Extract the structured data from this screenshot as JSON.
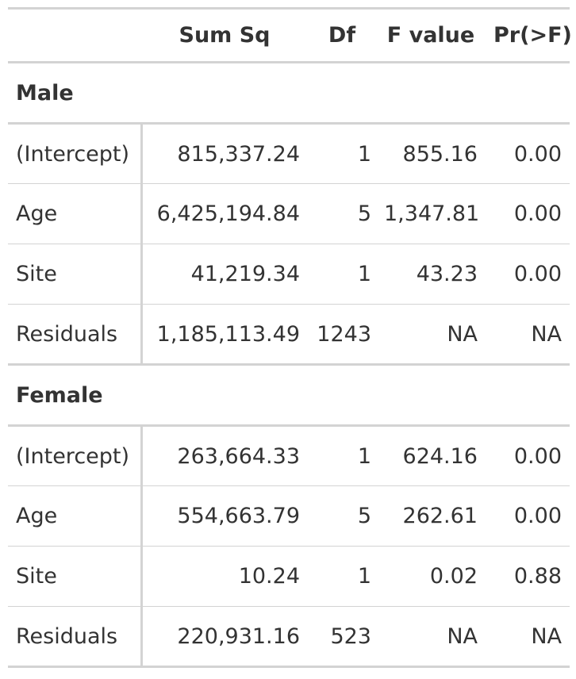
{
  "table": {
    "headers": [
      "",
      "Sum Sq",
      "Df",
      "F value",
      "Pr(>F)"
    ],
    "groups": [
      {
        "label": "Male",
        "rows": [
          {
            "term": "(Intercept)",
            "sum_sq": "815,337.24",
            "df": "1",
            "f_value": "855.16",
            "p_value": "0.00"
          },
          {
            "term": "Age",
            "sum_sq": "6,425,194.84",
            "df": "5",
            "f_value": "1,347.81",
            "p_value": "0.00"
          },
          {
            "term": "Site",
            "sum_sq": "41,219.34",
            "df": "1",
            "f_value": "43.23",
            "p_value": "0.00"
          },
          {
            "term": "Residuals",
            "sum_sq": "1,185,113.49",
            "df": "1243",
            "f_value": "NA",
            "p_value": "NA"
          }
        ]
      },
      {
        "label": "Female",
        "rows": [
          {
            "term": "(Intercept)",
            "sum_sq": "263,664.33",
            "df": "1",
            "f_value": "624.16",
            "p_value": "0.00"
          },
          {
            "term": "Age",
            "sum_sq": "554,663.79",
            "df": "5",
            "f_value": "262.61",
            "p_value": "0.00"
          },
          {
            "term": "Site",
            "sum_sq": "10.24",
            "df": "1",
            "f_value": "0.02",
            "p_value": "0.88"
          },
          {
            "term": "Residuals",
            "sum_sq": "220,931.16",
            "df": "523",
            "f_value": "NA",
            "p_value": "NA"
          }
        ]
      }
    ]
  },
  "colors": {
    "text": "#333333",
    "rule": "#d3d3d3",
    "background": "#ffffff"
  }
}
